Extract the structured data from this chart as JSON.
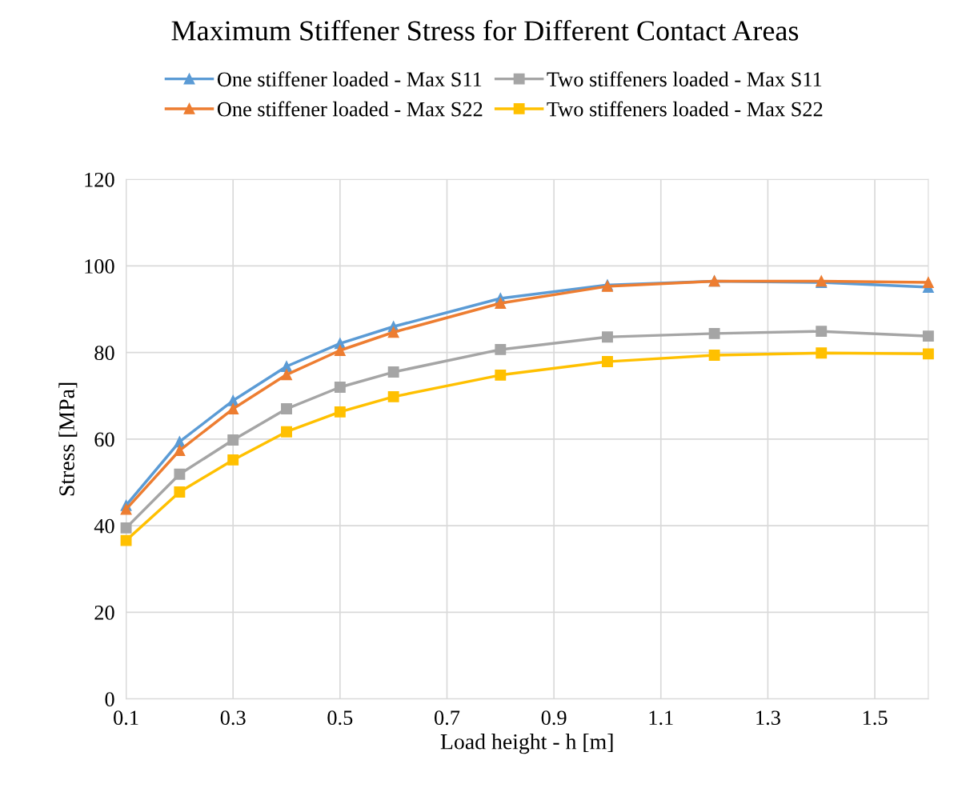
{
  "chart_data": {
    "type": "line",
    "title": "Maximum Stiffener Stress for Different Contact Areas",
    "xlabel": "Load height - h [m]",
    "ylabel": "Stress [MPa]",
    "x": [
      0.1,
      0.2,
      0.3,
      0.4,
      0.5,
      0.6,
      0.8,
      1.0,
      1.2,
      1.4,
      1.6
    ],
    "series": [
      {
        "name": "One stiffener loaded - Max S11",
        "color": "#5b9bd5",
        "marker": "triangle",
        "values": [
          44.7,
          59.4,
          68.9,
          76.8,
          82.1,
          86.0,
          92.5,
          95.6,
          96.5,
          96.2,
          95.1
        ]
      },
      {
        "name": "One stiffener loaded - Max S22",
        "color": "#ed7d31",
        "marker": "triangle",
        "values": [
          43.8,
          57.4,
          67.0,
          74.9,
          80.5,
          84.7,
          91.4,
          95.3,
          96.5,
          96.5,
          96.2
        ]
      },
      {
        "name": "Two stiffeners loaded - Max S11",
        "color": "#a5a5a5",
        "marker": "square",
        "values": [
          39.5,
          51.9,
          59.8,
          67.0,
          72.0,
          75.5,
          80.7,
          83.6,
          84.4,
          84.9,
          83.8
        ]
      },
      {
        "name": "Two stiffeners loaded - Max S22",
        "color": "#ffc000",
        "marker": "square",
        "values": [
          36.6,
          47.8,
          55.2,
          61.7,
          66.3,
          69.8,
          74.8,
          77.9,
          79.4,
          79.9,
          79.7
        ]
      }
    ],
    "xlim": [
      0.1,
      1.6
    ],
    "xticks": [
      0.1,
      0.3,
      0.5,
      0.7,
      0.9,
      1.1,
      1.3,
      1.5
    ],
    "ylim": [
      0,
      120
    ],
    "yticks": [
      0,
      20,
      40,
      60,
      80,
      100,
      120
    ],
    "grid": true,
    "legend": "top",
    "line_style": "solid"
  }
}
